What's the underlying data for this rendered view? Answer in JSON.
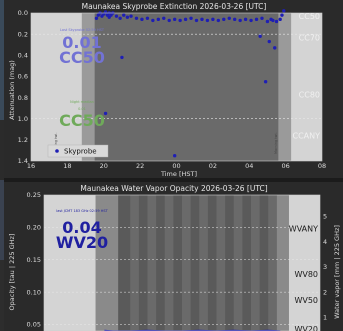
{
  "extinction": {
    "title": "Maunakea Skyprobe Extinction 2026-03-26 [UTC]",
    "ylabel": "Attenuation (mag)",
    "xlabel": "Time [HST]",
    "yticks": [
      "0.0",
      "0.2",
      "0.4",
      "0.6",
      "0.8",
      "1.0",
      "1.2",
      "1.4"
    ],
    "xticks": [
      "16",
      "18",
      "20",
      "22",
      "00",
      "02",
      "04",
      "06",
      "08"
    ],
    "cloud_labels": [
      "CC50",
      "CC70",
      "CC80",
      "CCANY"
    ],
    "current_note": "0.01",
    "current_value": "0.01",
    "current_cc": "CC50",
    "median_note": "0.01",
    "median_cc": "CC50",
    "legend": "Skyprobe",
    "small_note_top": "Last Skyprobe 02:59 HST",
    "small_note_median": "Night median",
    "twilight_label_left": "Evening twi.",
    "twilight_label_right": "Morning twi."
  },
  "water": {
    "title": "Maunakea Water Vapor Opacity 2026-03-26 [UTC]",
    "ylabel_left": "Opacity [tau | 225 GHz]",
    "ylabel_right": "Water vapor [mm | 225 GHz]",
    "yticks_left": [
      "0.25",
      "0.20",
      "0.15",
      "0.10",
      "0.05"
    ],
    "yticks_right": [
      "5",
      "4",
      "3",
      "2",
      "1"
    ],
    "wv_labels": [
      "WVANY",
      "WV80",
      "WV50",
      "WV20"
    ],
    "current_value": "0.04",
    "current_wv": "WV20",
    "small_note": "last JCMT 183 GHz 02:59 HST"
  },
  "colors": {
    "panel_bg": "#2a2a2a",
    "twilight": "#d4d4d4",
    "night_dark": "#6a6a6a",
    "point": "#1f1fb4",
    "current_label": "#7272d4",
    "median_label": "#6faa5a",
    "wv_text": "#2020a0"
  },
  "chart_data": [
    {
      "type": "scatter",
      "title": "Maunakea Skyprobe Extinction 2026-03-26 [UTC]",
      "xlabel": "Time [HST]",
      "ylabel": "Attenuation (mag)",
      "xlim": [
        16,
        32
      ],
      "ylim": [
        0,
        1.4
      ],
      "y_inverted": true,
      "series": [
        {
          "name": "Skyprobe",
          "x": [
            19.6,
            19.7,
            19.8,
            19.9,
            20.0,
            20.1,
            20.2,
            20.3,
            20.4,
            20.5,
            20.7,
            20.9,
            21.1,
            21.3,
            21.5,
            21.8,
            22.1,
            22.4,
            22.7,
            23.0,
            23.3,
            23.6,
            23.9,
            24.2,
            24.5,
            24.8,
            25.1,
            25.4,
            25.7,
            26.0,
            26.3,
            26.6,
            26.9,
            27.2,
            27.5,
            27.8,
            28.1,
            28.4,
            28.7,
            29.0,
            29.2,
            29.3,
            29.5,
            29.7,
            29.8,
            29.9,
            20.3,
            21.0,
            20.1,
            23.9,
            28.6,
            28.9,
            29.1,
            29.4
          ],
          "y": [
            0.05,
            0.02,
            0.0,
            0.03,
            0.01,
            -0.01,
            0.02,
            0.04,
            0.02,
            0.0,
            0.03,
            0.05,
            0.02,
            0.04,
            0.03,
            0.05,
            0.06,
            0.05,
            0.07,
            0.06,
            0.05,
            0.07,
            0.06,
            0.07,
            0.06,
            0.05,
            0.07,
            0.06,
            0.07,
            0.06,
            0.07,
            0.06,
            0.05,
            0.06,
            0.07,
            0.06,
            0.07,
            0.06,
            0.05,
            0.08,
            0.06,
            0.07,
            0.08,
            0.06,
            0.02,
            -0.02,
            0.0,
            0.42,
            0.95,
            1.35,
            0.22,
            0.65,
            0.27,
            0.33
          ]
        }
      ]
    },
    {
      "type": "line",
      "title": "Maunakea Water Vapor Opacity 2026-03-26 [UTC]",
      "ylabel": "Opacity [tau | 225 GHz]",
      "ylabel_right": "Water vapor [mm | 225 GHz]",
      "xlim": [
        16,
        32
      ],
      "ylim": [
        0.04,
        0.25
      ],
      "series": [
        {
          "x": [
            19.5,
            20.0,
            21.0,
            22.0,
            23.0,
            24.0,
            25.0,
            26.0,
            27.0,
            28.0,
            29.0,
            29.7
          ],
          "y": [
            0.041,
            0.04,
            0.04,
            0.041,
            0.04,
            0.04,
            0.041,
            0.04,
            0.041,
            0.04,
            0.041,
            0.04
          ]
        }
      ]
    }
  ]
}
